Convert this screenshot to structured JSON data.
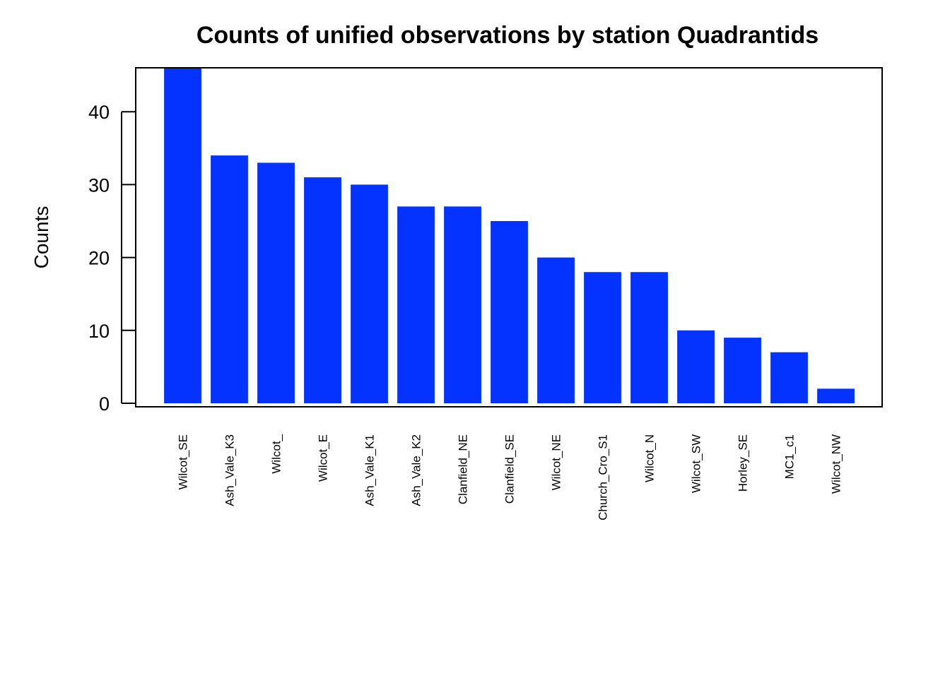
{
  "chart_data": {
    "type": "bar",
    "title": "Counts of unified observations by station Quadrantids",
    "xlabel": "",
    "ylabel": "Counts",
    "categories": [
      "Wilcot_SE",
      "Ash_Vale_K3",
      "Wilcot_",
      "Wilcot_E",
      "Ash_Vale_K1",
      "Ash_Vale_K2",
      "Clanfield_NE",
      "Clanfield_SE",
      "Wilcot_NE",
      "Church_Cro_S1",
      "Wilcot_N",
      "Wilcot_SW",
      "Horley_SE",
      "MC1_c1",
      "Wilcot_NW"
    ],
    "values": [
      46,
      34,
      33,
      31,
      30,
      27,
      27,
      25,
      20,
      18,
      18,
      10,
      9,
      7,
      2
    ],
    "yticks": [
      0,
      10,
      20,
      30,
      40
    ],
    "ylim": [
      0,
      46
    ],
    "bar_color": "#0433ff",
    "grid": false,
    "legend": "none"
  }
}
